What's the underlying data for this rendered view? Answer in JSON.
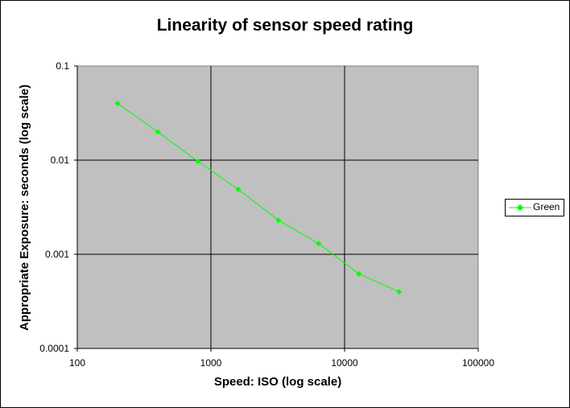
{
  "chart_data": {
    "type": "line",
    "title": "Linearity of sensor speed rating",
    "xlabel": "Speed: ISO (log scale)",
    "ylabel": "Appropriate Exposure: seconds (log scale)",
    "xscale": "log",
    "yscale": "log",
    "xlim": [
      100,
      100000
    ],
    "ylim": [
      0.0001,
      0.1
    ],
    "x_ticks": [
      "100",
      "1000",
      "10000",
      "100000"
    ],
    "y_ticks": [
      "0.1",
      "0.01",
      "0.001",
      "0.0001"
    ],
    "grid": true,
    "legend_position": "right",
    "plot_background": "#c0c0c0",
    "series": [
      {
        "name": "Green",
        "color": "#00ff00",
        "x": [
          200,
          400,
          800,
          1600,
          3200,
          6400,
          12800,
          25600
        ],
        "y": [
          0.04,
          0.02,
          0.0097,
          0.0049,
          0.0023,
          0.0013,
          0.00062,
          0.0004
        ]
      }
    ]
  }
}
